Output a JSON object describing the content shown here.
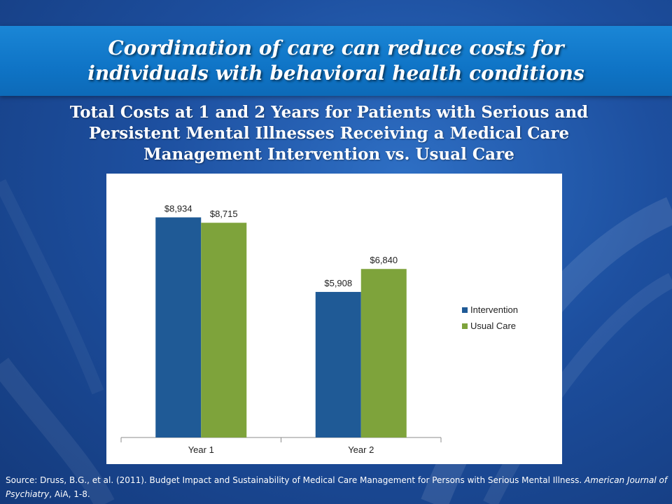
{
  "banner": {
    "line1": "Coordination of care can reduce costs for",
    "line2": "individuals with behavioral health conditions"
  },
  "chart_title": {
    "line1": "Total Costs at 1 and 2 Years for Patients with Serious and",
    "line2": "Persistent Mental Illnesses Receiving a Medical Care",
    "line3": "Management Intervention vs. Usual Care"
  },
  "chart_data": {
    "type": "bar",
    "categories": [
      "Year 1",
      "Year 2"
    ],
    "series": [
      {
        "name": "Intervention",
        "values": [
          8934,
          5908
        ],
        "labels": [
          "$8,934",
          "$5,908"
        ],
        "color": "#1f5a96"
      },
      {
        "name": "Usual Care",
        "values": [
          8715,
          6840
        ],
        "labels": [
          "$8,715",
          "$6,840"
        ],
        "color": "#7ea33b"
      }
    ],
    "ylim": [
      0,
      10000
    ],
    "grid": false,
    "legend_position": "right"
  },
  "source": {
    "prefix": "Source: Druss, B.G., et al. (2011). Budget Impact and Sustainability of Medical Care Management for Persons with Serious Mental Illness. ",
    "journal": "American Journal of Psychiatry",
    "suffix": ", AiA, 1-8."
  },
  "colors": {
    "banner": "#0f74c6",
    "background": "#1d4f9f"
  }
}
